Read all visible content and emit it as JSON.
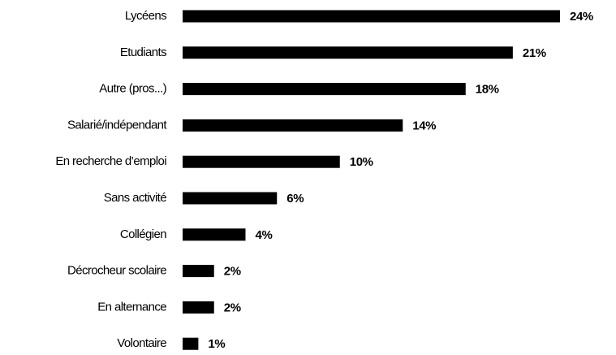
{
  "chart_data": {
    "type": "hbar",
    "categories": [
      "Lycéens",
      "Etudiants",
      "Autre (pros...)",
      "Salarié/indépendant",
      "En recherche d’emploi",
      "Sans activité",
      "Collégien",
      "Décrocheur scolaire",
      "En alternance",
      "Volontaire"
    ],
    "values": [
      24,
      21,
      18,
      14,
      10,
      6,
      4,
      2,
      2,
      1
    ],
    "value_labels": [
      "24%",
      "21%",
      "18%",
      "14%",
      "10%",
      "6%",
      "4%",
      "2%",
      "2%",
      "1%"
    ],
    "color": "#000000"
  }
}
